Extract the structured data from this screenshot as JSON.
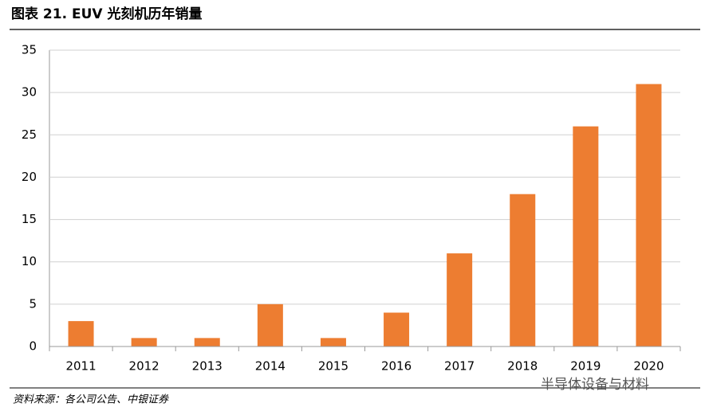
{
  "chart_data": {
    "type": "bar",
    "title": "图表 21. EUV 光刻机历年销量",
    "categories": [
      "2011",
      "2012",
      "2013",
      "2014",
      "2015",
      "2016",
      "2017",
      "2018",
      "2019",
      "2020"
    ],
    "values": [
      3,
      1,
      1,
      5,
      1,
      4,
      11,
      18,
      26,
      31
    ],
    "color": "#ed7d31",
    "ylim": [
      0,
      35
    ],
    "yticks": [
      0,
      5,
      10,
      15,
      20,
      25,
      30,
      35
    ],
    "grid": true,
    "source": "资料来源：各公司公告、中银证券",
    "watermark": "半导体设备与材料"
  }
}
